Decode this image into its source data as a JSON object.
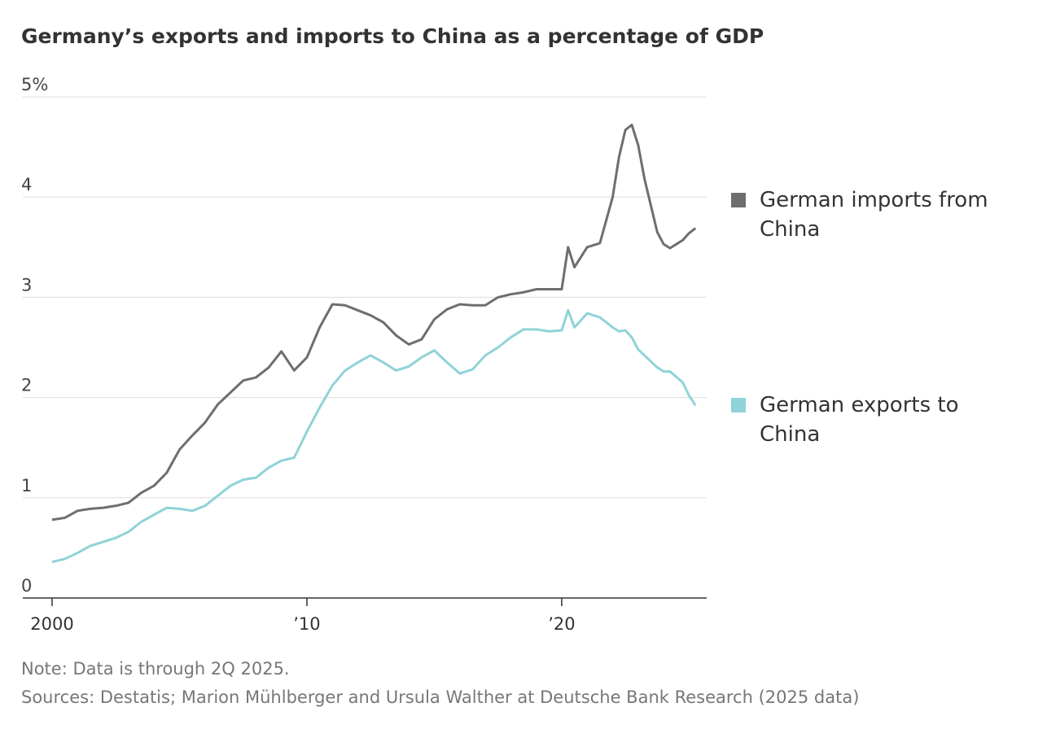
{
  "chart_data": {
    "type": "line",
    "title": "Germany’s exports and imports to China as a percentage of GDP",
    "note": "Note: Data is through 2Q 2025.",
    "sources": "Sources: Destatis; Marion Mühlberger and Ursula Walther at Deutsche Bank Research (2025 data)",
    "x": [
      2000,
      2000.5,
      2001,
      2001.5,
      2002,
      2002.5,
      2003,
      2003.5,
      2004,
      2004.5,
      2005,
      2005.5,
      2006,
      2006.5,
      2007,
      2007.5,
      2008,
      2008.5,
      2009,
      2009.5,
      2010,
      2010.5,
      2011,
      2011.5,
      2012,
      2012.5,
      2013,
      2013.5,
      2014,
      2014.5,
      2015,
      2015.5,
      2016,
      2016.5,
      2017,
      2017.5,
      2018,
      2018.5,
      2019,
      2019.5,
      2020,
      2020.25,
      2020.5,
      2021,
      2021.5,
      2022,
      2022.25,
      2022.5,
      2022.75,
      2023,
      2023.25,
      2023.75,
      2024,
      2024.25,
      2024.75,
      2025,
      2025.25
    ],
    "series": [
      {
        "name": "German imports from China",
        "color": "#6e6e6e",
        "values": [
          0.78,
          0.8,
          0.87,
          0.89,
          0.9,
          0.92,
          0.95,
          1.05,
          1.12,
          1.25,
          1.48,
          1.62,
          1.75,
          1.93,
          2.05,
          2.17,
          2.2,
          2.3,
          2.46,
          2.27,
          2.4,
          2.7,
          2.93,
          2.92,
          2.87,
          2.82,
          2.75,
          2.62,
          2.53,
          2.58,
          2.78,
          2.88,
          2.93,
          2.92,
          2.92,
          3.0,
          3.03,
          3.05,
          3.08,
          3.08,
          3.08,
          3.5,
          3.3,
          3.5,
          3.54,
          4.0,
          4.4,
          4.67,
          4.72,
          4.52,
          4.18,
          3.65,
          3.53,
          3.49,
          3.57,
          3.64,
          3.69
        ]
      },
      {
        "name": "German exports to China",
        "color": "#8fd3d8",
        "values": [
          0.36,
          0.39,
          0.45,
          0.52,
          0.56,
          0.6,
          0.66,
          0.76,
          0.83,
          0.9,
          0.89,
          0.87,
          0.92,
          1.02,
          1.12,
          1.18,
          1.2,
          1.3,
          1.37,
          1.4,
          1.66,
          1.9,
          2.12,
          2.27,
          2.35,
          2.42,
          2.35,
          2.27,
          2.31,
          2.4,
          2.47,
          2.35,
          2.24,
          2.28,
          2.42,
          2.5,
          2.6,
          2.68,
          2.68,
          2.66,
          2.67,
          2.87,
          2.7,
          2.84,
          2.8,
          2.7,
          2.66,
          2.67,
          2.6,
          2.48,
          2.42,
          2.3,
          2.26,
          2.26,
          2.15,
          2.02,
          1.92
        ]
      }
    ],
    "xlim": [
      1998.85,
      2025.69
    ],
    "xticks": [
      2000,
      {
        "value": 2010,
        "label": "’10"
      },
      {
        "value": 2020,
        "label": "’20"
      }
    ],
    "ylim": [
      0,
      5
    ],
    "yticks": [
      0,
      1,
      2,
      3,
      4,
      {
        "value": 5,
        "label": "5%"
      }
    ],
    "grid": true
  }
}
